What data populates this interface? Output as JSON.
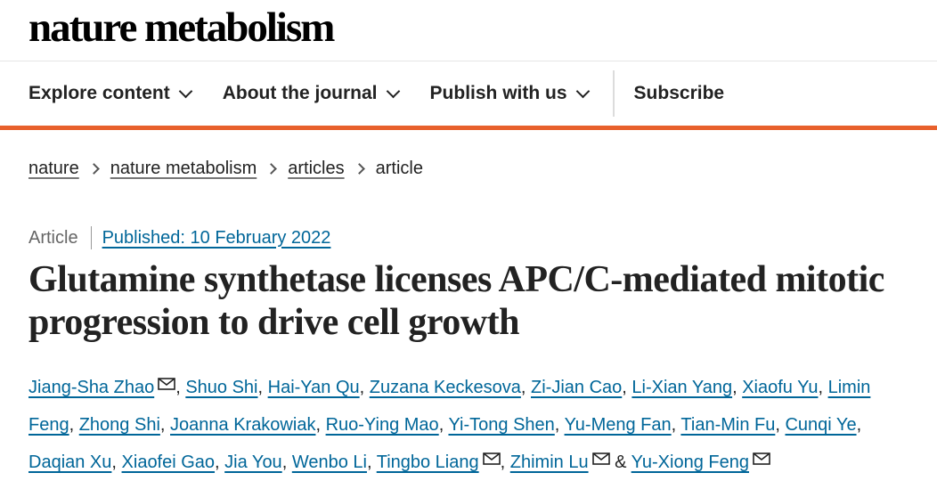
{
  "brand": {
    "name": "nature metabolism"
  },
  "nav": {
    "items": [
      {
        "label": "Explore content",
        "dropdown": true
      },
      {
        "label": "About the journal",
        "dropdown": true
      },
      {
        "label": "Publish with us",
        "dropdown": true
      }
    ],
    "subscribe": "Subscribe"
  },
  "breadcrumb": [
    "nature",
    "nature metabolism",
    "articles",
    "article"
  ],
  "article": {
    "type": "Article",
    "published": "Published: 10 February 2022",
    "title": "Glutamine synthetase licenses APC/C-mediated mitotic progression to drive cell growth",
    "authors": [
      {
        "name": "Jiang-Sha Zhao",
        "email": true
      },
      {
        "name": "Shuo Shi",
        "email": false
      },
      {
        "name": "Hai-Yan Qu",
        "email": false
      },
      {
        "name": "Zuzana Keckesova",
        "email": false
      },
      {
        "name": "Zi-Jian Cao",
        "email": false
      },
      {
        "name": "Li-Xian Yang",
        "email": false
      },
      {
        "name": "Xiaofu Yu",
        "email": false
      },
      {
        "name": "Limin Feng",
        "email": false
      },
      {
        "name": "Zhong Shi",
        "email": false
      },
      {
        "name": "Joanna Krakowiak",
        "email": false
      },
      {
        "name": "Ruo-Ying Mao",
        "email": false
      },
      {
        "name": "Yi-Tong Shen",
        "email": false
      },
      {
        "name": "Yu-Meng Fan",
        "email": false
      },
      {
        "name": "Tian-Min Fu",
        "email": false
      },
      {
        "name": "Cunqi Ye",
        "email": false
      },
      {
        "name": "Daqian Xu",
        "email": false
      },
      {
        "name": "Xiaofei Gao",
        "email": false
      },
      {
        "name": "Jia You",
        "email": false
      },
      {
        "name": "Wenbo Li",
        "email": false
      },
      {
        "name": "Tingbo Liang",
        "email": true
      },
      {
        "name": "Zhimin Lu",
        "email": true
      },
      {
        "name": "Yu-Xiong Feng",
        "email": true
      }
    ],
    "separator": ",",
    "conjunction": "&"
  },
  "colors": {
    "accent": "#e8602c",
    "link": "#006699"
  },
  "icons": {
    "dropdown": "chevron-down-icon",
    "breadcrumb_sep": "chevron-right-icon",
    "email": "mail-icon"
  }
}
